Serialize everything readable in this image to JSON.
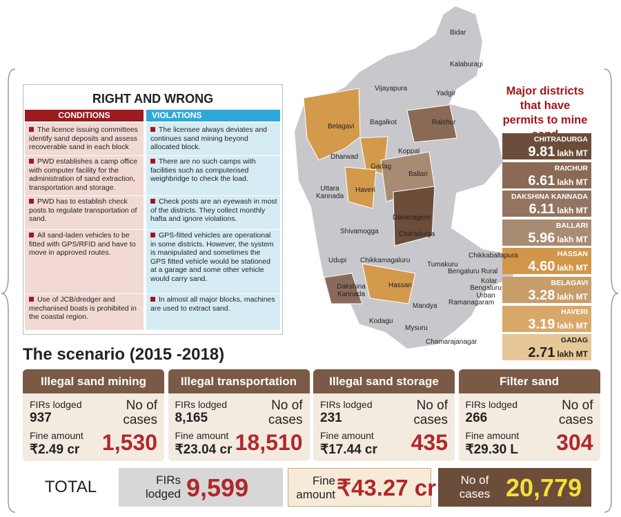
{
  "right_and_wrong": {
    "title": "RIGHT AND WRONG",
    "conditions_header": "CONDITIONS",
    "violations_header": "VIOLATIONS",
    "rows": [
      [
        "The licence issuing committees identify sand deposits and assess recoverable sand in each block",
        "The licensee always deviates and continues sand mining beyond allocated block."
      ],
      [
        "PWD establishes a camp office with computer facility for the administration of sand extraction, transportation and storage.",
        "There are no such camps with facilities such as computerised weighbridge to check the load."
      ],
      [
        "PWD has to establish check posts to regulate transportation of sand.",
        "Check posts are an eyewash in most of the districts. They collect monthly hafta and ignore violations."
      ],
      [
        "All sand-laden vehicles to be fitted with GPS/RFID and have to move in approved routes.",
        "GPS-fitted vehicles are operational in some districts. However, the system is manipulated and sometimes the GPS fitted vehicle would be stationed at a garage and some other vehicle would carry sand."
      ],
      [
        "Use of JCB/dredger and mechanised boats is prohibited in the coastal region.",
        "In almost all major blocks, machines are used to extract sand."
      ]
    ]
  },
  "map": {
    "labels": [
      "Bidar",
      "Kalaburagi",
      "Vijayapura",
      "Yadgir",
      "Bagalkot",
      "Belagavi",
      "Raichur",
      "Koppal",
      "Dharwad",
      "Gadag",
      "Ballari",
      "Uttara Kannada",
      "Haveri",
      "Davanagere",
      "Shivamogga",
      "Chitradurga",
      "Udupi",
      "Chikkamagaluru",
      "Tumakuru",
      "Chikkaballapura",
      "Bengaluru Rural",
      "Kolar",
      "Bengaluru Urban",
      "Dakshina Kannada",
      "Hassan",
      "Ramanagaram",
      "Mandya",
      "Kodagu",
      "Mysuru",
      "Chamarajanagar"
    ]
  },
  "districts": {
    "title": "Major districts that have permits to mine sand",
    "unit": "lakh MT",
    "items": [
      {
        "name": "CHITRADURGA",
        "value": "9.81",
        "color": "#6b4d3a"
      },
      {
        "name": "RAICHUR",
        "value": "6.61",
        "color": "#8a6a55"
      },
      {
        "name": "DAKSHINA KANNADA",
        "value": "6.11",
        "color": "#937460"
      },
      {
        "name": "BALLARI",
        "value": "5.96",
        "color": "#a88b73"
      },
      {
        "name": "HASSAN",
        "value": "4.60",
        "color": "#d2964a"
      },
      {
        "name": "BELAGAVI",
        "value": "3.28",
        "color": "#c79d6a"
      },
      {
        "name": "HAVERI",
        "value": "3.19",
        "color": "#d8a869"
      },
      {
        "name": "GADAG",
        "value": "2.71",
        "color": "#e6c798"
      }
    ]
  },
  "scenario": {
    "title": "The scenario (2015 -2018)",
    "firs_label": "FIRs lodged",
    "cases_label": "No of cases",
    "fine_label": "Fine amount",
    "cards": [
      {
        "title": "Illegal sand mining",
        "firs": "937",
        "cases": "1,530",
        "fine": "₹2.49 cr"
      },
      {
        "title": "Illegal transportation",
        "firs": "8,165",
        "cases": "18,510",
        "fine": "₹23.04 cr"
      },
      {
        "title": "Illegal sand storage",
        "firs": "231",
        "cases": "435",
        "fine": "₹17.44 cr"
      },
      {
        "title": "Filter sand",
        "firs": "266",
        "cases": "304",
        "fine": "₹29.30 L"
      }
    ]
  },
  "total": {
    "label": "TOTAL",
    "firs_label": "FIRs lodged",
    "firs": "9,599",
    "fine_label": "Fine amount",
    "fine": "₹43.27 cr",
    "cases_label": "No of cases",
    "cases": "20,779"
  }
}
